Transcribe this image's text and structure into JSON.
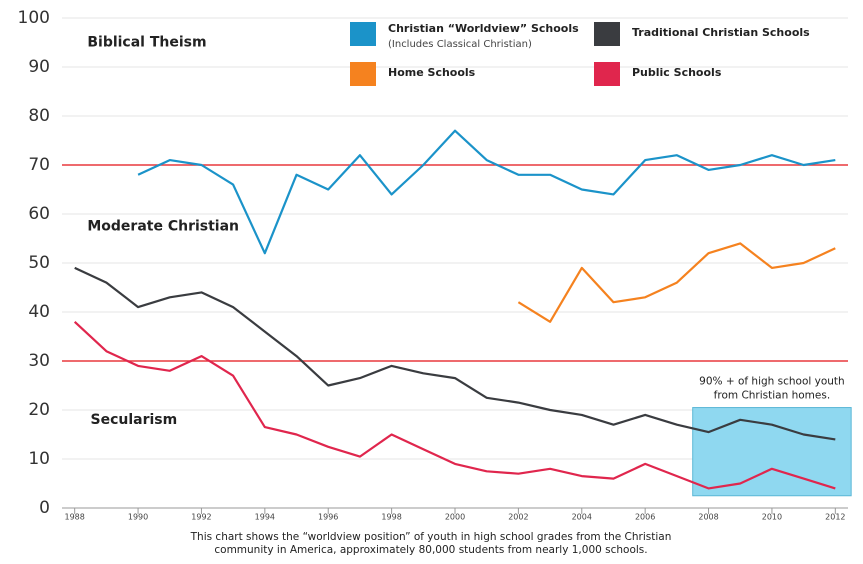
{
  "chart_data": {
    "type": "line",
    "x": [
      1988,
      1989,
      1990,
      1991,
      1992,
      1993,
      1994,
      1995,
      1996,
      1997,
      1998,
      1999,
      2000,
      2001,
      2002,
      2003,
      2004,
      2005,
      2006,
      2007,
      2008,
      2009,
      2010,
      2011,
      2012
    ],
    "series": [
      {
        "name": "Christian “Worldview” Schools",
        "note": "(Includes Classical Christian)",
        "color": "#1b93c9",
        "values": [
          null,
          null,
          68,
          71,
          70,
          66,
          52,
          68,
          65,
          72,
          64,
          70,
          77,
          71,
          68,
          68,
          65,
          64,
          71,
          72,
          69,
          70,
          72,
          70,
          71
        ]
      },
      {
        "name": "Traditional Christian Schools",
        "color": "#3a3c40",
        "values": [
          49,
          46,
          41,
          43,
          44,
          41,
          36,
          31,
          25,
          26.5,
          29,
          27.5,
          26.5,
          22.5,
          21.5,
          20,
          19,
          17,
          19,
          17,
          15.5,
          18,
          17,
          15,
          14
        ]
      },
      {
        "name": "Home Schools",
        "color": "#f5821f",
        "values": [
          null,
          null,
          null,
          null,
          null,
          null,
          null,
          null,
          null,
          null,
          null,
          null,
          null,
          null,
          42,
          38,
          49,
          42,
          43,
          46,
          52,
          54,
          49,
          50,
          53
        ]
      },
      {
        "name": "Public Schools",
        "color": "#e0264d",
        "values": [
          38,
          32,
          29,
          28,
          31,
          27,
          16.5,
          15,
          12.5,
          10.5,
          15,
          12,
          9,
          7.5,
          7,
          8,
          6.5,
          6,
          9,
          6.5,
          4,
          5,
          8,
          6,
          4
        ]
      }
    ],
    "xlim": [
      1987.6,
      2012.4
    ],
    "xticks": [
      1988,
      1990,
      1992,
      1994,
      1996,
      1998,
      2000,
      2002,
      2004,
      2006,
      2008,
      2010,
      2012
    ],
    "ylim": [
      0,
      100
    ],
    "yticks": [
      0,
      10,
      20,
      30,
      40,
      50,
      60,
      70,
      80,
      90,
      100
    ],
    "grid": true,
    "reference_lines": {
      "values": [
        70,
        30
      ],
      "color": "#e8383d"
    },
    "zones": [
      {
        "label": "Biblical Theism",
        "x": 1988.4,
        "y": 95
      },
      {
        "label": "Moderate Christian",
        "x": 1988.4,
        "y": 57.5
      },
      {
        "label": "Secularism",
        "x": 1988.5,
        "y": 18
      }
    ],
    "highlight": {
      "x": [
        2007.5,
        2012.5
      ],
      "y": [
        2.5,
        20.5
      ],
      "color": "#8fd8f0",
      "label": [
        "90% + of high school youth",
        "from Christian homes."
      ]
    },
    "caption": [
      "This chart shows the “worldview position” of youth in high school grades from the Christian",
      "community in America, approximately 80,000 students from nearly 1,000 schools."
    ]
  }
}
